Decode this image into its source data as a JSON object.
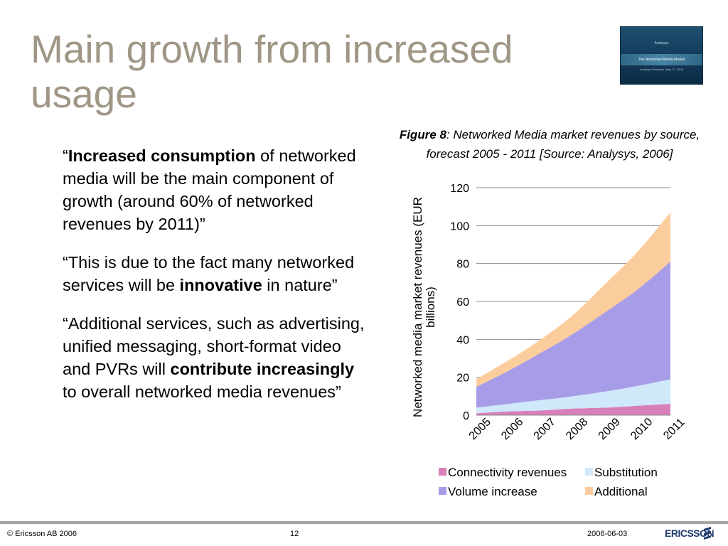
{
  "slide": {
    "title": "Main growth from increased usage",
    "thumbnail": {
      "brand": "Analysys",
      "heading": "The Networked Media Market",
      "subtitle": "Analysys Research, May 27, 2006"
    },
    "quotes": [
      {
        "parts": [
          {
            "text": "“",
            "bold": false
          },
          {
            "text": "Increased consumption",
            "bold": true
          },
          {
            "text": " of networked media will be the main component of growth (around 60% of networked revenues by 2011)”",
            "bold": false
          }
        ]
      },
      {
        "parts": [
          {
            "text": "“This is due to the fact many networked services will be ",
            "bold": false
          },
          {
            "text": "innovative",
            "bold": true
          },
          {
            "text": " in nature”",
            "bold": false
          }
        ]
      },
      {
        "parts": [
          {
            "text": "“Additional services, such as advertising, unified messaging, short-format video and PVRs will ",
            "bold": false
          },
          {
            "text": "contribute increasingly",
            "bold": true
          },
          {
            "text": " to overall networked media revenues”",
            "bold": false
          }
        ]
      }
    ],
    "caption": {
      "label": "Figure 8",
      "text": ": Networked Media market revenues by source, forecast 2005 - 2011 [Source: Analysys, 2006]"
    },
    "footer": {
      "copyright": "© Ericsson AB 2006",
      "page": "12",
      "date": "2006-06-03",
      "logo_text": "ERICSSON"
    }
  },
  "chart_data": {
    "type": "area",
    "stacked": true,
    "title": "",
    "ylabel": "Networked media market revenues (EUR billions)",
    "xlabel": "",
    "ylim": [
      0,
      120
    ],
    "yticks": [
      0,
      20,
      40,
      60,
      80,
      100,
      120
    ],
    "grid": true,
    "legend_position": "bottom",
    "x": [
      "2005",
      "2006",
      "2007",
      "2008",
      "2009",
      "2010",
      "2011"
    ],
    "series": [
      {
        "name": "Connectivity revenues",
        "color": "#d97fba",
        "values": [
          1,
          2,
          2.5,
          3.5,
          4,
          5,
          6
        ]
      },
      {
        "name": "Substitution",
        "color": "#cfe9fb",
        "values": [
          3,
          4,
          5.5,
          6.5,
          8.5,
          10.5,
          13
        ]
      },
      {
        "name": "Volume increase",
        "color": "#a79ce8",
        "values": [
          11,
          17.5,
          25,
          33,
          42,
          51,
          62
        ]
      },
      {
        "name": "Additional",
        "color": "#fbcd9c",
        "values": [
          4,
          5.5,
          7,
          10,
          15,
          20,
          26
        ]
      }
    ]
  }
}
